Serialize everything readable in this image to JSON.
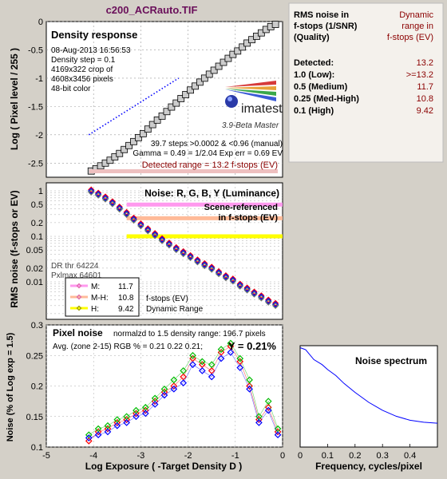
{
  "window_title": "c200_ACRauto.TIF",
  "summary": {
    "header_left": [
      "RMS noise in",
      "f-stops (1/SNR)",
      "(Quality)"
    ],
    "header_right": [
      "Dynamic",
      "range in",
      "f-stops (EV)"
    ],
    "rows": [
      {
        "label": "Detected:",
        "value": "13.2"
      },
      {
        "label": "1.0  (Low):",
        "value": ">=13.2"
      },
      {
        "label": "0.5  (Medium)",
        "value": "11.7"
      },
      {
        "label": "0.25 (Med-High)",
        "value": "10.8"
      },
      {
        "label": "0.1  (High)",
        "value": "9.42"
      }
    ],
    "header_color": "#8b0000"
  },
  "colors": {
    "background": "#d4d0c8",
    "plot_bg": "#ffffff",
    "title": "#6a0f5a",
    "dark_red": "#8b0000",
    "blue": "#0000ff",
    "pink": "#ff99ee",
    "salmon": "#ffbb99",
    "yellow": "#ffff00",
    "red": "#ff0000",
    "green": "#00bb00",
    "gray_square": "#cccccc"
  },
  "panel1": {
    "title": "Density response",
    "info": [
      "08-Aug-2013 16:56:53",
      "Density step = 0.1",
      "4169x322 crop of",
      "4608x3456 pixels",
      "48-bit color"
    ],
    "logo": "imatest",
    "version": "3.9-Beta  Master",
    "steps_note": "39.7 steps >0.0002 & <0.96 (manual)",
    "gamma_note": "Gamma = 0.49 = 1/2.04  Exp err = 0.69 EV",
    "detected_range": "Detected range = 13.2 f-stops (EV)"
  },
  "panel2": {
    "title": "Noise: R, G, B, Y (Luminance)",
    "scene_ref": [
      "Scene-referenced",
      "in f-stops (EV)"
    ],
    "dr_thr": [
      "DR thr 64224",
      "Pxlmax 64601"
    ],
    "legend": [
      {
        "key": "M:",
        "value": "11.7"
      },
      {
        "key": "M-H:",
        "value": "10.8"
      },
      {
        "key": "H:",
        "value": "9.42"
      }
    ],
    "dr_note": [
      "f-stops (EV)",
      "Dynamic Range"
    ]
  },
  "panel3": {
    "title": "Pixel noise",
    "norm_note": "normalzd to 1.5 density range: 196.7 pixels",
    "avg_note": "Avg. (zone 2-15) RGB % = 0.21  0.22  0.21;",
    "y_note": "Y = 0.21%"
  },
  "panel4": {
    "title": "Noise spectrum"
  },
  "chart_data": [
    {
      "type": "scatter",
      "title": "Density response",
      "ylabel": "Log ( Pixel level / 255 )",
      "ylim": [
        -2.75,
        0
      ],
      "xlim": [
        -5,
        0
      ],
      "yticks": [
        "0",
        "-0.5",
        "-1",
        "-1.5",
        "-2",
        "-2.5"
      ],
      "series": [
        {
          "x": [
            -4.05,
            -3.95,
            -3.85,
            -3.75,
            -3.65,
            -3.55,
            -3.45,
            -3.35,
            -3.25,
            -3.15,
            -3.05,
            -2.95,
            -2.85,
            -2.75,
            -2.65,
            -2.55,
            -2.45,
            -2.35,
            -2.25,
            -2.15,
            -2.05,
            -1.95,
            -1.85,
            -1.75,
            -1.65,
            -1.55,
            -1.45,
            -1.35,
            -1.25,
            -1.15,
            -1.05,
            -0.95,
            -0.85,
            -0.75,
            -0.65,
            -0.55,
            -0.45,
            -0.35,
            -0.25,
            -0.15
          ],
          "y": [
            -2.64,
            -2.6,
            -2.55,
            -2.5,
            -2.45,
            -2.39,
            -2.33,
            -2.26,
            -2.19,
            -2.12,
            -2.05,
            -1.98,
            -1.9,
            -1.82,
            -1.74,
            -1.67,
            -1.59,
            -1.51,
            -1.44,
            -1.36,
            -1.29,
            -1.21,
            -1.14,
            -1.07,
            -1.0,
            -0.93,
            -0.86,
            -0.79,
            -0.72,
            -0.65,
            -0.58,
            -0.52,
            -0.45,
            -0.38,
            -0.32,
            -0.26,
            -0.2,
            -0.14,
            -0.09,
            -0.05
          ]
        },
        {
          "x": [
            -4.1,
            -2.2
          ],
          "y": [
            -2.0,
            -1.0
          ]
        }
      ]
    },
    {
      "type": "scatter",
      "title": "Noise: R, G, B, Y (Luminance)",
      "ylabel": "RMS noise (f-stops or EV)",
      "yscale": "log",
      "ylim": [
        0.0015,
        1.5
      ],
      "xlim": [
        -5,
        0
      ],
      "yticks": [
        "1",
        "0.5",
        "0.2",
        "0.1",
        "0.05",
        "0.02",
        "0.01"
      ],
      "series": [
        {
          "x": [
            -4.05,
            -3.9,
            -3.75,
            -3.6,
            -3.45,
            -3.3,
            -3.15,
            -3.0,
            -2.85,
            -2.7,
            -2.55,
            -2.4,
            -2.25,
            -2.1,
            -1.95,
            -1.8,
            -1.65,
            -1.5,
            -1.35,
            -1.2,
            -1.05,
            -0.9,
            -0.75,
            -0.6,
            -0.45,
            -0.3,
            -0.15
          ],
          "y": [
            1.0,
            0.85,
            0.7,
            0.55,
            0.42,
            0.32,
            0.24,
            0.18,
            0.14,
            0.11,
            0.085,
            0.068,
            0.054,
            0.044,
            0.036,
            0.029,
            0.024,
            0.02,
            0.016,
            0.013,
            0.011,
            0.0085,
            0.007,
            0.0057,
            0.0047,
            0.0038,
            0.0032
          ]
        }
      ],
      "levels": [
        {
          "name": "M",
          "y": 0.5
        },
        {
          "name": "M-H",
          "y": 0.25
        },
        {
          "name": "H",
          "y": 0.1
        }
      ]
    },
    {
      "type": "scatter",
      "title": "Pixel noise",
      "xlabel": "Log Exposure ( -Target Density D )",
      "ylabel": "Noise (% of Log exp = 1.5)",
      "xlim": [
        -5,
        0
      ],
      "ylim": [
        0.1,
        0.3
      ],
      "xticks": [
        "-5",
        "-4",
        "-3",
        "-2",
        "-1",
        "0"
      ],
      "yticks": [
        "0.3",
        "0.25",
        "0.2",
        "0.15",
        "0.1"
      ],
      "series": [
        {
          "name": "R",
          "x": [
            -4.1,
            -3.9,
            -3.7,
            -3.5,
            -3.3,
            -3.1,
            -2.9,
            -2.7,
            -2.5,
            -2.3,
            -2.1,
            -1.9,
            -1.7,
            -1.5,
            -1.3,
            -1.1,
            -0.9,
            -0.7,
            -0.5,
            -0.3,
            -0.1
          ],
          "y": [
            0.11,
            0.125,
            0.13,
            0.14,
            0.145,
            0.155,
            0.16,
            0.175,
            0.19,
            0.2,
            0.215,
            0.245,
            0.235,
            0.225,
            0.255,
            0.265,
            0.24,
            0.2,
            0.145,
            0.165,
            0.125
          ]
        },
        {
          "name": "G",
          "x": [
            -4.1,
            -3.9,
            -3.7,
            -3.5,
            -3.3,
            -3.1,
            -2.9,
            -2.7,
            -2.5,
            -2.3,
            -2.1,
            -1.9,
            -1.7,
            -1.5,
            -1.3,
            -1.1,
            -0.9,
            -0.7,
            -0.5,
            -0.3,
            -0.1
          ],
          "y": [
            0.12,
            0.13,
            0.135,
            0.145,
            0.15,
            0.16,
            0.165,
            0.18,
            0.195,
            0.21,
            0.225,
            0.25,
            0.24,
            0.235,
            0.26,
            0.27,
            0.245,
            0.21,
            0.15,
            0.175,
            0.13
          ]
        },
        {
          "name": "B",
          "x": [
            -4.1,
            -3.9,
            -3.7,
            -3.5,
            -3.3,
            -3.1,
            -2.9,
            -2.7,
            -2.5,
            -2.3,
            -2.1,
            -1.9,
            -1.7,
            -1.5,
            -1.3,
            -1.1,
            -0.9,
            -0.7,
            -0.5,
            -0.3,
            -0.1
          ],
          "y": [
            0.115,
            0.12,
            0.125,
            0.135,
            0.14,
            0.15,
            0.155,
            0.17,
            0.185,
            0.195,
            0.205,
            0.235,
            0.225,
            0.215,
            0.245,
            0.255,
            0.23,
            0.195,
            0.14,
            0.16,
            0.12
          ]
        }
      ]
    },
    {
      "type": "line",
      "title": "Noise spectrum",
      "xlabel": "Frequency, cycles/pixel",
      "xlim": [
        0,
        0.5
      ],
      "xticks": [
        "0",
        "0.1",
        "0.2",
        "0.3",
        "0.4"
      ],
      "series": [
        {
          "x": [
            0.0,
            0.02,
            0.05,
            0.08,
            0.1,
            0.13,
            0.16,
            0.2,
            0.25,
            0.3,
            0.35,
            0.4,
            0.45,
            0.5
          ],
          "y": [
            1.0,
            0.98,
            0.88,
            0.83,
            0.78,
            0.72,
            0.64,
            0.55,
            0.45,
            0.37,
            0.31,
            0.27,
            0.25,
            0.24
          ]
        }
      ]
    }
  ]
}
